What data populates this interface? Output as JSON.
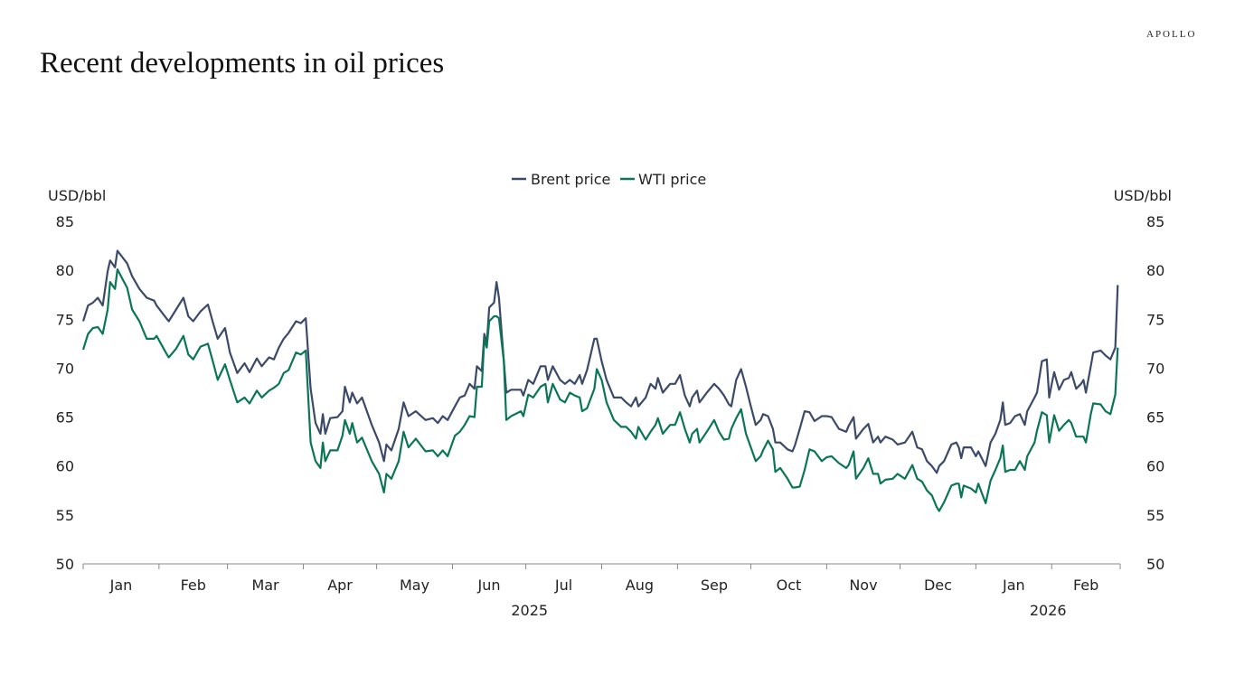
{
  "header": {
    "title": "Recent developments in oil prices",
    "logo": "APOLLO"
  },
  "chart_data": {
    "type": "line",
    "title": "Recent developments in oil prices",
    "ylabel_left": "USD/bbl",
    "ylabel_right": "USD/bbl",
    "ylim": [
      50,
      85
    ],
    "yticks": [
      50,
      55,
      60,
      65,
      70,
      75,
      80,
      85
    ],
    "xlim": [
      "2025-01-01",
      "2026-03-01"
    ],
    "x_tick_labels": [
      "Jan",
      "Feb",
      "Mar",
      "Apr",
      "May",
      "Jun",
      "Jul",
      "Aug",
      "Sep",
      "Oct",
      "Nov",
      "Dec",
      "Jan",
      "Feb"
    ],
    "year_labels": [
      "2025",
      "2026"
    ],
    "legend_position": "top-center",
    "grid": false,
    "x": [
      "2025-01-01",
      "2025-01-03",
      "2025-01-05",
      "2025-01-07",
      "2025-01-09",
      "2025-01-11",
      "2025-01-12",
      "2025-01-14",
      "2025-01-15",
      "2025-01-19",
      "2025-01-21",
      "2025-01-24",
      "2025-01-27",
      "2025-01-30",
      "2025-01-31",
      "2025-02-04",
      "2025-02-05",
      "2025-02-08",
      "2025-02-11",
      "2025-02-13",
      "2025-02-15",
      "2025-02-18",
      "2025-02-21",
      "2025-02-23",
      "2025-02-25",
      "2025-02-28",
      "2025-03-02",
      "2025-03-05",
      "2025-03-08",
      "2025-03-10",
      "2025-03-13",
      "2025-03-15",
      "2025-03-18",
      "2025-03-20",
      "2025-03-22",
      "2025-03-24",
      "2025-03-26",
      "2025-03-29",
      "2025-03-31",
      "2025-04-02",
      "2025-04-04",
      "2025-04-06",
      "2025-04-08",
      "2025-04-09",
      "2025-04-10",
      "2025-04-12",
      "2025-04-15",
      "2025-04-17",
      "2025-04-18",
      "2025-04-20",
      "2025-04-21",
      "2025-04-23",
      "2025-04-25",
      "2025-04-29",
      "2025-05-02",
      "2025-05-04",
      "2025-05-05",
      "2025-05-07",
      "2025-05-10",
      "2025-05-12",
      "2025-05-14",
      "2025-05-17",
      "2025-05-21",
      "2025-05-24",
      "2025-05-26",
      "2025-05-28",
      "2025-05-30",
      "2025-06-02",
      "2025-06-04",
      "2025-06-06",
      "2025-06-08",
      "2025-06-10",
      "2025-06-11",
      "2025-06-13",
      "2025-06-14",
      "2025-06-15",
      "2025-06-16",
      "2025-06-18",
      "2025-06-19",
      "2025-06-20",
      "2025-06-22",
      "2025-06-23",
      "2025-06-25",
      "2025-06-29",
      "2025-06-30",
      "2025-07-02",
      "2025-07-04",
      "2025-07-07",
      "2025-07-09",
      "2025-07-10",
      "2025-07-12",
      "2025-07-15",
      "2025-07-17",
      "2025-07-19",
      "2025-07-21",
      "2025-07-23",
      "2025-07-24",
      "2025-07-26",
      "2025-07-29",
      "2025-07-30",
      "2025-08-01",
      "2025-08-03",
      "2025-08-06",
      "2025-08-09",
      "2025-08-11",
      "2025-08-13",
      "2025-08-15",
      "2025-08-16",
      "2025-08-19",
      "2025-08-21",
      "2025-08-23",
      "2025-08-24",
      "2025-08-26",
      "2025-08-29",
      "2025-08-31",
      "2025-09-02",
      "2025-09-04",
      "2025-09-06",
      "2025-09-07",
      "2025-09-09",
      "2025-09-10",
      "2025-09-13",
      "2025-09-16",
      "2025-09-18",
      "2025-09-20",
      "2025-09-22",
      "2025-09-23",
      "2025-09-25",
      "2025-09-27",
      "2025-09-29",
      "2025-10-01",
      "2025-10-03",
      "2025-10-05",
      "2025-10-06",
      "2025-10-08",
      "2025-10-10",
      "2025-10-11",
      "2025-10-13",
      "2025-10-16",
      "2025-10-18",
      "2025-10-19",
      "2025-10-21",
      "2025-10-23",
      "2025-10-25",
      "2025-10-27",
      "2025-10-30",
      "2025-11-01",
      "2025-11-03",
      "2025-11-06",
      "2025-11-09",
      "2025-11-10",
      "2025-11-12",
      "2025-11-13",
      "2025-11-16",
      "2025-11-18",
      "2025-11-20",
      "2025-11-22",
      "2025-11-23",
      "2025-11-25",
      "2025-11-28",
      "2025-11-30",
      "2025-12-03",
      "2025-12-06",
      "2025-12-08",
      "2025-12-10",
      "2025-12-12",
      "2025-12-14",
      "2025-12-16",
      "2025-12-17",
      "2025-12-19",
      "2025-12-22",
      "2025-12-24",
      "2025-12-25",
      "2025-12-26",
      "2025-12-27",
      "2025-12-30",
      "2026-01-01",
      "2026-01-02",
      "2026-01-05",
      "2026-01-07",
      "2026-01-09",
      "2026-01-11",
      "2026-01-12",
      "2026-01-13",
      "2026-01-15",
      "2026-01-17",
      "2026-01-19",
      "2026-01-21",
      "2026-01-22",
      "2026-01-25",
      "2026-01-26",
      "2026-01-28",
      "2026-01-30",
      "2026-01-31",
      "2026-02-01",
      "2026-02-02",
      "2026-02-04",
      "2026-02-06",
      "2026-02-08",
      "2026-02-09",
      "2026-02-11",
      "2026-02-13",
      "2026-02-14",
      "2026-02-15",
      "2026-02-17",
      "2026-02-18",
      "2026-02-21",
      "2026-02-23",
      "2026-02-25",
      "2026-02-27",
      "2026-02-28"
    ],
    "series": [
      {
        "name": "Brent price",
        "color": "#3b4a68",
        "values": [
          74.8,
          76.4,
          76.7,
          77.2,
          76.4,
          79.9,
          81.0,
          80.3,
          82.0,
          80.7,
          79.4,
          78.1,
          77.2,
          76.9,
          76.4,
          75.1,
          74.8,
          76.0,
          77.2,
          75.3,
          74.8,
          75.8,
          76.5,
          74.7,
          73.0,
          74.1,
          71.6,
          69.5,
          70.5,
          69.6,
          71.0,
          70.2,
          71.1,
          70.9,
          72.1,
          73.0,
          73.6,
          74.8,
          74.6,
          75.1,
          67.9,
          64.4,
          63.3,
          65.3,
          63.3,
          64.9,
          65.0,
          65.6,
          68.1,
          66.5,
          67.5,
          66.4,
          67.0,
          64.2,
          62.4,
          60.5,
          62.2,
          61.6,
          63.8,
          66.5,
          65.1,
          65.6,
          64.7,
          64.9,
          64.4,
          65.1,
          64.7,
          66.1,
          67.0,
          67.2,
          68.4,
          67.9,
          70.2,
          69.7,
          73.5,
          72.5,
          76.2,
          76.7,
          78.8,
          77.2,
          70.7,
          67.5,
          67.8,
          67.8,
          67.2,
          68.8,
          68.4,
          70.2,
          70.2,
          68.8,
          70.2,
          68.8,
          68.4,
          68.8,
          68.4,
          69.3,
          68.4,
          69.8,
          73.0,
          73.0,
          70.7,
          68.8,
          67.0,
          67.0,
          66.5,
          66.1,
          67.0,
          66.1,
          67.0,
          68.4,
          67.9,
          69.0,
          67.5,
          68.4,
          68.4,
          69.3,
          67.2,
          66.1,
          67.0,
          67.7,
          66.5,
          67.5,
          68.4,
          67.9,
          67.2,
          66.3,
          66.1,
          68.8,
          69.9,
          68.1,
          66.1,
          64.2,
          64.7,
          65.3,
          65.1,
          63.8,
          62.4,
          62.4,
          61.7,
          61.5,
          62.1,
          63.8,
          65.6,
          65.5,
          64.6,
          65.1,
          65.1,
          65.0,
          63.8,
          63.5,
          64.1,
          65.0,
          62.8,
          63.8,
          64.3,
          62.4,
          63.0,
          62.4,
          63.0,
          62.7,
          62.2,
          62.4,
          63.5,
          61.9,
          61.7,
          60.5,
          60.0,
          59.3,
          60.0,
          60.5,
          62.2,
          62.4,
          61.9,
          60.8,
          61.9,
          61.9,
          61.0,
          61.5,
          60.0,
          62.4,
          63.3,
          64.7,
          66.5,
          64.2,
          64.4,
          65.1,
          65.3,
          64.2,
          65.6,
          67.0,
          67.5,
          70.7,
          70.9,
          67.0,
          68.4,
          69.6,
          67.8,
          68.8,
          69.0,
          69.6,
          67.9,
          68.4,
          68.8,
          67.5,
          70.2,
          71.6,
          71.8,
          71.3,
          70.9,
          72.1,
          78.5
        ]
      },
      {
        "name": "WTI price",
        "color": "#0b7657",
        "values": [
          71.9,
          73.5,
          74.1,
          74.2,
          73.5,
          76.0,
          78.8,
          78.1,
          80.1,
          78.2,
          76.0,
          74.8,
          73.0,
          73.0,
          73.3,
          71.5,
          71.1,
          72.0,
          73.3,
          71.4,
          70.9,
          72.2,
          72.5,
          70.7,
          68.8,
          70.4,
          68.8,
          66.5,
          67.0,
          66.4,
          67.7,
          67.0,
          67.7,
          68.0,
          68.4,
          69.5,
          69.8,
          71.6,
          71.4,
          71.8,
          62.4,
          60.5,
          59.8,
          62.4,
          60.5,
          61.6,
          61.6,
          63.1,
          64.7,
          63.3,
          64.4,
          62.4,
          62.9,
          60.5,
          59.2,
          57.3,
          59.2,
          58.7,
          60.5,
          63.5,
          61.9,
          62.8,
          61.5,
          61.6,
          61.0,
          61.6,
          61.0,
          63.1,
          63.5,
          64.2,
          65.1,
          65.0,
          68.1,
          68.1,
          73.0,
          72.1,
          74.8,
          75.3,
          75.3,
          75.1,
          70.7,
          64.7,
          65.1,
          65.6,
          65.1,
          67.3,
          67.0,
          68.1,
          68.4,
          66.5,
          68.4,
          66.8,
          66.5,
          67.5,
          67.2,
          67.0,
          65.6,
          65.9,
          67.9,
          69.9,
          68.8,
          66.5,
          64.7,
          64.0,
          64.0,
          63.5,
          62.8,
          64.0,
          62.7,
          63.5,
          64.2,
          64.9,
          63.3,
          64.2,
          64.2,
          65.5,
          63.8,
          62.4,
          63.3,
          63.8,
          62.4,
          63.5,
          64.7,
          63.5,
          62.7,
          62.8,
          63.8,
          64.9,
          65.8,
          63.3,
          61.9,
          60.5,
          61.0,
          61.6,
          62.6,
          61.7,
          59.4,
          59.8,
          58.7,
          57.8,
          57.8,
          57.9,
          59.6,
          61.7,
          61.5,
          60.5,
          60.9,
          61.0,
          60.3,
          59.8,
          60.1,
          61.5,
          58.7,
          59.8,
          60.8,
          59.2,
          59.2,
          58.2,
          58.6,
          58.7,
          59.2,
          58.7,
          60.1,
          58.7,
          58.4,
          57.5,
          57.0,
          55.8,
          55.4,
          56.3,
          58.0,
          58.2,
          58.2,
          56.8,
          58.0,
          57.7,
          57.3,
          58.2,
          56.2,
          58.5,
          59.6,
          60.8,
          62.1,
          59.4,
          59.6,
          59.6,
          60.5,
          59.6,
          61.0,
          62.4,
          63.6,
          65.5,
          65.2,
          62.4,
          63.8,
          65.2,
          63.6,
          64.2,
          64.7,
          64.4,
          63.0,
          63.0,
          63.0,
          62.4,
          65.3,
          66.4,
          66.3,
          65.6,
          65.3,
          67.3,
          72.1
        ]
      }
    ]
  }
}
